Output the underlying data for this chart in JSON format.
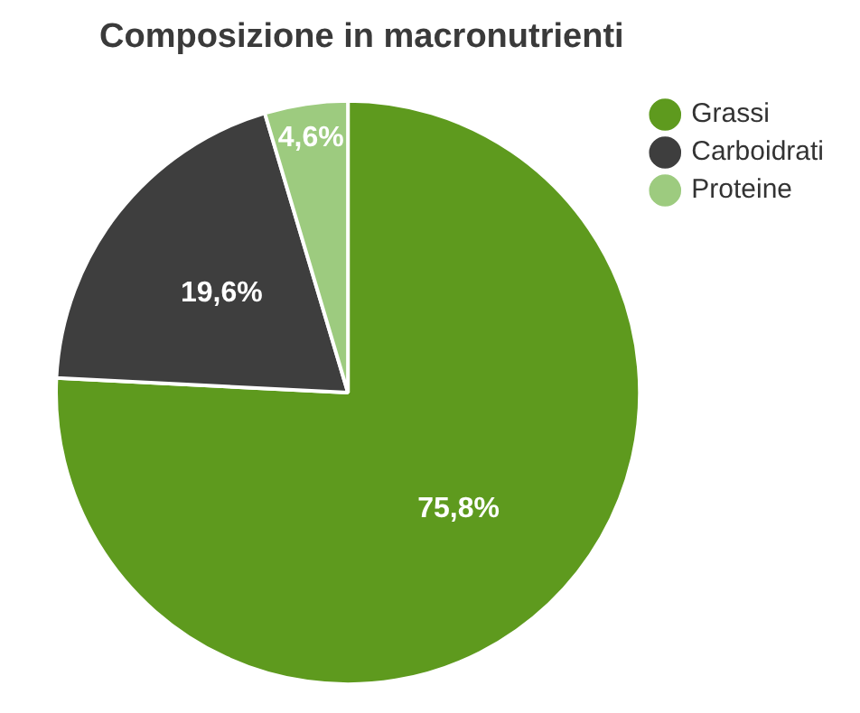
{
  "chart_data": {
    "type": "pie",
    "title": "Composizione in macronutrienti",
    "categories": [
      "Grassi",
      "Carboidrati",
      "Proteine"
    ],
    "values": [
      75.8,
      19.6,
      4.6
    ],
    "colors": [
      "#5e9a1e",
      "#3e3e3e",
      "#9dcb7f"
    ],
    "value_labels": [
      "75,8%",
      "19,6%",
      "4,6%"
    ],
    "legend": "top right"
  }
}
